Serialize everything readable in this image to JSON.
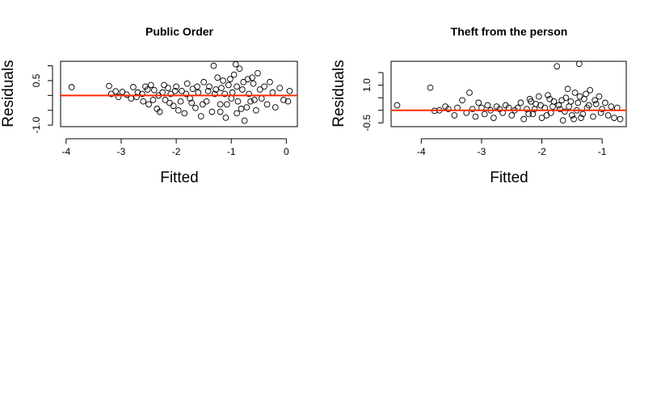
{
  "chart_data": [
    {
      "type": "scatter",
      "title": "Public Order",
      "xlabel": "Fitted",
      "ylabel": "Residuals",
      "xlim": [
        -4.1,
        0.2
      ],
      "ylim": [
        -1.05,
        1.15
      ],
      "xticks": [
        -4,
        -3,
        -2,
        -1,
        0
      ],
      "xtick_labels": [
        "-4",
        "-3",
        "-2",
        "-1",
        "0"
      ],
      "yticks": [
        -1.0,
        0.5
      ],
      "ytick_labels": [
        "-1.0",
        "0.5"
      ],
      "y_minor_ticks": [
        -0.5,
        0.0,
        1.0
      ],
      "reference_line": {
        "y": 0.0,
        "color": "#ff2a00"
      },
      "points": [
        [
          -3.9,
          0.28
        ],
        [
          -3.22,
          0.32
        ],
        [
          -3.18,
          0.05
        ],
        [
          -3.1,
          0.14
        ],
        [
          -3.05,
          -0.05
        ],
        [
          -2.98,
          0.12
        ],
        [
          -2.9,
          0.03
        ],
        [
          -2.82,
          -0.1
        ],
        [
          -2.78,
          0.28
        ],
        [
          -2.7,
          0.1
        ],
        [
          -2.6,
          -0.2
        ],
        [
          -2.56,
          0.3
        ],
        [
          -2.5,
          -0.3
        ],
        [
          -2.46,
          0.35
        ],
        [
          -2.4,
          0.18
        ],
        [
          -2.35,
          -0.45
        ],
        [
          -2.3,
          -0.55
        ],
        [
          -2.25,
          0.1
        ],
        [
          -2.2,
          -0.15
        ],
        [
          -2.15,
          0.25
        ],
        [
          -2.1,
          0.05
        ],
        [
          -2.05,
          -0.35
        ],
        [
          -2.0,
          0.3
        ],
        [
          -1.96,
          -0.5
        ],
        [
          -1.9,
          0.15
        ],
        [
          -1.85,
          -0.6
        ],
        [
          -1.8,
          0.4
        ],
        [
          -1.75,
          -0.1
        ],
        [
          -1.7,
          0.22
        ],
        [
          -1.65,
          -0.42
        ],
        [
          -1.6,
          0.1
        ],
        [
          -1.55,
          -0.7
        ],
        [
          -1.5,
          0.45
        ],
        [
          -1.45,
          -0.2
        ],
        [
          -1.4,
          0.3
        ],
        [
          -1.35,
          -0.55
        ],
        [
          -1.32,
          1.0
        ],
        [
          -1.3,
          0.05
        ],
        [
          -1.25,
          0.6
        ],
        [
          -1.2,
          -0.3
        ],
        [
          -1.15,
          0.5
        ],
        [
          -1.1,
          -0.75
        ],
        [
          -1.05,
          0.35
        ],
        [
          -1.0,
          -0.1
        ],
        [
          -0.95,
          0.7
        ],
        [
          -0.92,
          1.05
        ],
        [
          -0.9,
          -0.6
        ],
        [
          -0.85,
          0.9
        ],
        [
          -0.8,
          0.2
        ],
        [
          -0.76,
          -0.85
        ],
        [
          -0.7,
          0.55
        ],
        [
          -0.65,
          -0.2
        ],
        [
          -0.6,
          0.4
        ],
        [
          -0.55,
          -0.5
        ],
        [
          -0.52,
          0.75
        ],
        [
          -0.45,
          -0.1
        ],
        [
          -0.4,
          0.3
        ],
        [
          -0.35,
          -0.3
        ],
        [
          -0.3,
          0.45
        ],
        [
          -0.25,
          0.1
        ],
        [
          -0.2,
          -0.4
        ],
        [
          -0.12,
          0.25
        ],
        [
          -0.05,
          -0.15
        ],
        [
          0.03,
          -0.2
        ],
        [
          0.06,
          0.15
        ],
        [
          -1.28,
          0.2
        ],
        [
          -1.18,
          0.25
        ],
        [
          -1.08,
          -0.3
        ],
        [
          -0.98,
          0.1
        ],
        [
          -0.88,
          -0.2
        ],
        [
          -0.78,
          0.45
        ],
        [
          -0.68,
          0.05
        ],
        [
          -0.58,
          -0.15
        ],
        [
          -0.48,
          0.2
        ],
        [
          -1.62,
          0.3
        ],
        [
          -1.72,
          -0.25
        ],
        [
          -1.82,
          0.05
        ],
        [
          -1.92,
          -0.2
        ],
        [
          -2.02,
          0.15
        ],
        [
          -2.12,
          -0.25
        ],
        [
          -2.22,
          0.35
        ],
        [
          -2.32,
          0.0
        ],
        [
          -2.42,
          -0.15
        ],
        [
          -2.52,
          0.2
        ],
        [
          -2.62,
          0.05
        ],
        [
          -2.72,
          -0.05
        ],
        [
          -1.42,
          0.15
        ],
        [
          -1.52,
          -0.3
        ],
        [
          -1.12,
          0.05
        ],
        [
          -0.82,
          -0.45
        ],
        [
          -0.72,
          -0.4
        ],
        [
          -0.62,
          0.6
        ],
        [
          -1.02,
          0.55
        ],
        [
          -0.9,
          0.3
        ],
        [
          -1.2,
          -0.55
        ]
      ]
    },
    {
      "type": "scatter",
      "title": "Theft from the person",
      "xlabel": "Fitted",
      "ylabel": "Residuals",
      "xlim": [
        -4.5,
        -0.6
      ],
      "ylim": [
        -0.65,
        1.95
      ],
      "xticks": [
        -4,
        -3,
        -2,
        -1
      ],
      "xtick_labels": [
        "-4",
        "-3",
        "-2",
        "-1"
      ],
      "yticks": [
        -0.5,
        1.0
      ],
      "ytick_labels": [
        "-0.5",
        "1.0"
      ],
      "y_minor_ticks": [
        0.0,
        0.5,
        1.5
      ],
      "reference_line": {
        "y": 0.0,
        "color": "#ff2a00"
      },
      "points": [
        [
          -4.4,
          0.2
        ],
        [
          -3.85,
          0.9
        ],
        [
          -3.78,
          -0.02
        ],
        [
          -3.7,
          0.0
        ],
        [
          -3.6,
          0.15
        ],
        [
          -3.55,
          0.05
        ],
        [
          -3.45,
          -0.2
        ],
        [
          -3.4,
          0.1
        ],
        [
          -3.32,
          0.4
        ],
        [
          -3.25,
          -0.1
        ],
        [
          -3.2,
          0.7
        ],
        [
          -3.15,
          0.05
        ],
        [
          -3.1,
          -0.25
        ],
        [
          -3.05,
          0.3
        ],
        [
          -3.0,
          0.1
        ],
        [
          -2.95,
          -0.15
        ],
        [
          -2.9,
          0.2
        ],
        [
          -2.85,
          0.0
        ],
        [
          -2.8,
          -0.3
        ],
        [
          -2.75,
          0.15
        ],
        [
          -2.7,
          0.05
        ],
        [
          -2.6,
          0.2
        ],
        [
          -2.5,
          -0.2
        ],
        [
          -2.4,
          0.1
        ],
        [
          -2.35,
          0.3
        ],
        [
          -2.3,
          -0.35
        ],
        [
          -2.25,
          0.05
        ],
        [
          -2.2,
          0.45
        ],
        [
          -2.15,
          -0.15
        ],
        [
          -2.1,
          0.25
        ],
        [
          -2.05,
          0.55
        ],
        [
          -2.0,
          -0.3
        ],
        [
          -1.95,
          0.1
        ],
        [
          -1.9,
          0.6
        ],
        [
          -1.85,
          -0.1
        ],
        [
          -1.8,
          0.35
        ],
        [
          -1.75,
          1.75
        ],
        [
          -1.7,
          0.05
        ],
        [
          -1.65,
          -0.4
        ],
        [
          -1.6,
          0.5
        ],
        [
          -1.55,
          0.15
        ],
        [
          -1.5,
          -0.2
        ],
        [
          -1.45,
          0.7
        ],
        [
          -1.4,
          0.3
        ],
        [
          -1.38,
          1.85
        ],
        [
          -1.35,
          -0.3
        ],
        [
          -1.3,
          0.45
        ],
        [
          -1.25,
          0.1
        ],
        [
          -1.2,
          0.8
        ],
        [
          -1.15,
          -0.25
        ],
        [
          -1.1,
          0.25
        ],
        [
          -1.05,
          0.55
        ],
        [
          -1.0,
          0.05
        ],
        [
          -0.95,
          0.3
        ],
        [
          -0.9,
          -0.2
        ],
        [
          -0.85,
          0.15
        ],
        [
          -0.8,
          -0.3
        ],
        [
          -0.75,
          0.1
        ],
        [
          -0.7,
          -0.35
        ],
        [
          -2.45,
          0.0
        ],
        [
          -2.55,
          0.1
        ],
        [
          -2.65,
          -0.1
        ],
        [
          -1.72,
          0.2
        ],
        [
          -1.62,
          -0.05
        ],
        [
          -1.52,
          0.35
        ],
        [
          -1.42,
          0.0
        ],
        [
          -1.32,
          -0.15
        ],
        [
          -1.22,
          0.2
        ],
        [
          -1.12,
          0.4
        ],
        [
          -1.02,
          -0.1
        ],
        [
          -1.92,
          -0.2
        ],
        [
          -2.02,
          0.2
        ],
        [
          -2.12,
          0.05
        ],
        [
          -2.22,
          -0.15
        ],
        [
          -1.82,
          0.15
        ],
        [
          -1.47,
          -0.35
        ],
        [
          -1.27,
          0.65
        ],
        [
          -1.57,
          0.85
        ],
        [
          -1.87,
          0.45
        ],
        [
          -2.18,
          0.35
        ],
        [
          -1.67,
          0.4
        ],
        [
          -1.37,
          0.55
        ]
      ]
    }
  ]
}
